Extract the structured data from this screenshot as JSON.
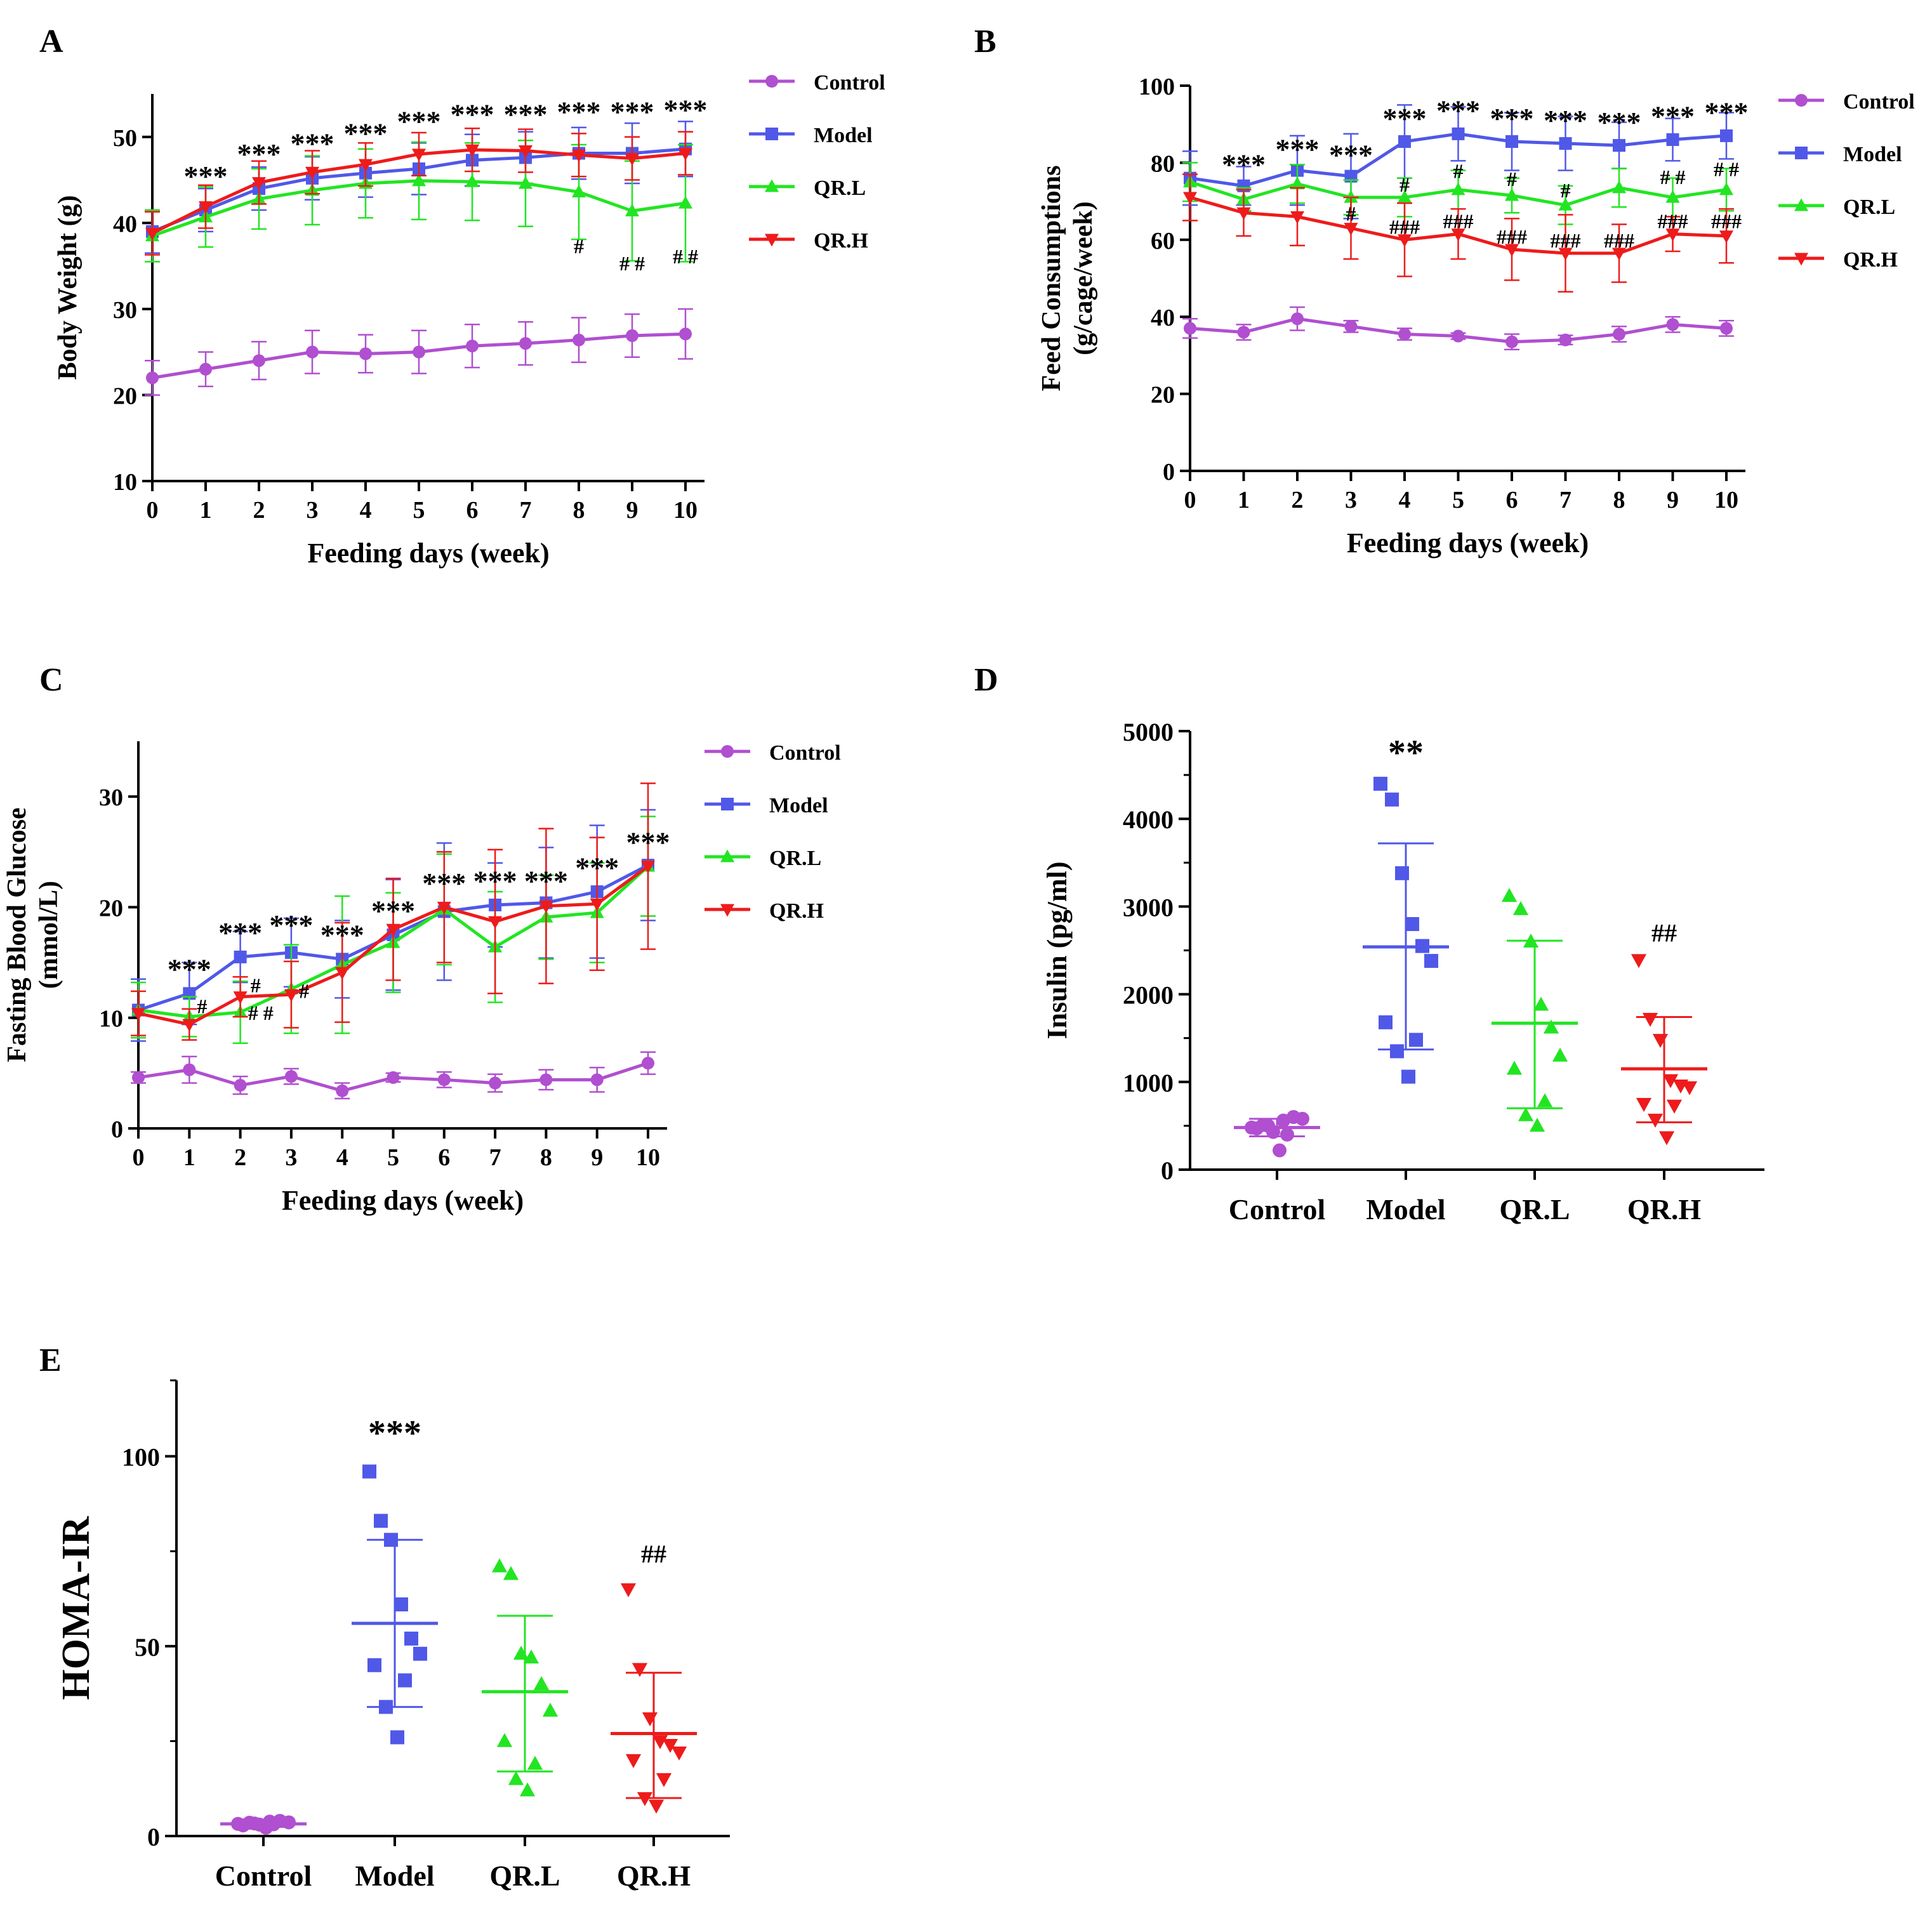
{
  "colors": {
    "control": "#b04fd0",
    "model": "#5058e8",
    "qrl": "#22e522",
    "qrh": "#ee1b1b",
    "axis": "#000000"
  },
  "chart_data": [
    {
      "id": "A",
      "panel_label": "A",
      "type": "line",
      "xlabel": "Feeding days (week)",
      "ylabel": "Body Weight (g)",
      "ylabel2": "",
      "x": [
        0,
        1,
        2,
        3,
        4,
        5,
        6,
        7,
        8,
        9,
        10
      ],
      "ylim": [
        10,
        55
      ],
      "yticks": [
        10,
        20,
        30,
        40,
        50
      ],
      "legend_position": "right",
      "series": [
        {
          "name": "Control",
          "marker": "circle",
          "color_key": "control",
          "values": [
            22,
            23,
            24,
            25,
            24.8,
            25,
            25.7,
            26,
            26.4,
            26.9,
            27.1
          ],
          "errors": [
            2,
            2,
            2.2,
            2.5,
            2.2,
            2.5,
            2.5,
            2.5,
            2.6,
            2.5,
            2.9
          ]
        },
        {
          "name": "Model",
          "marker": "square",
          "color_key": "model",
          "values": [
            39,
            41.5,
            44,
            45.2,
            45.8,
            46.3,
            47.3,
            47.6,
            48.1,
            48.1,
            48.6
          ],
          "errors": [
            2.5,
            2.5,
            2.5,
            2.5,
            2.8,
            3,
            3,
            3,
            3,
            3.5,
            3.2
          ]
        },
        {
          "name": "QR.L",
          "marker": "triangle",
          "color_key": "qrl",
          "values": [
            38.5,
            40.7,
            42.8,
            43.8,
            44.6,
            44.9,
            44.8,
            44.6,
            43.6,
            41.4,
            42.3
          ],
          "errors": [
            3,
            3.5,
            3.5,
            4,
            4,
            4.5,
            4.5,
            5,
            5.5,
            5.8,
            6.8
          ]
        },
        {
          "name": "QR.H",
          "marker": "triangle-down",
          "color_key": "qrh",
          "values": [
            38.8,
            41.9,
            44.7,
            45.9,
            46.8,
            48,
            48.5,
            48.4,
            47.9,
            47.5,
            48.1
          ],
          "errors": [
            2.5,
            2.5,
            2.5,
            2.5,
            2.5,
            2.5,
            2.5,
            2.5,
            2.5,
            2.5,
            2.5
          ]
        }
      ],
      "annotations": [
        {
          "x": 1,
          "y": 44.3,
          "text": "***"
        },
        {
          "x": 2,
          "y": 46.9,
          "text": "***"
        },
        {
          "x": 3,
          "y": 48.1,
          "text": "***"
        },
        {
          "x": 4,
          "y": 49.3,
          "text": "***"
        },
        {
          "x": 5,
          "y": 50.7,
          "text": "***"
        },
        {
          "x": 6,
          "y": 51.5,
          "text": "***"
        },
        {
          "x": 7,
          "y": 51.5,
          "text": "***"
        },
        {
          "x": 8,
          "y": 51.8,
          "text": "***"
        },
        {
          "x": 9,
          "y": 51.8,
          "text": "***"
        },
        {
          "x": 10,
          "y": 52,
          "text": "***"
        },
        {
          "x": 8,
          "y": 36.5,
          "text": "#"
        },
        {
          "x": 9,
          "y": 34.5,
          "text": "# #"
        },
        {
          "x": 10,
          "y": 35.3,
          "text": "# #"
        }
      ]
    },
    {
      "id": "B",
      "panel_label": "B",
      "type": "line",
      "xlabel": "Feeding days (week)",
      "ylabel": "Feed Consumptions",
      "ylabel2": "(g/cage/week)",
      "x": [
        0,
        1,
        2,
        3,
        4,
        5,
        6,
        7,
        8,
        9,
        10
      ],
      "ylim": [
        0,
        100
      ],
      "yticks": [
        0,
        20,
        40,
        60,
        80,
        100
      ],
      "legend_position": "right",
      "series": [
        {
          "name": "Control",
          "marker": "circle",
          "color_key": "control",
          "values": [
            37,
            36,
            39.5,
            37.5,
            35.5,
            35,
            33.5,
            34,
            35.5,
            38,
            37
          ],
          "errors": [
            2.5,
            2,
            3,
            1.5,
            1.5,
            0.8,
            2,
            1.2,
            2,
            2,
            2
          ]
        },
        {
          "name": "Model",
          "marker": "square",
          "color_key": "model",
          "values": [
            76,
            74,
            78,
            76.5,
            85.5,
            87.5,
            85.5,
            85,
            84.5,
            86,
            87
          ],
          "errors": [
            7,
            5,
            9,
            11,
            9.5,
            7,
            7.5,
            7,
            6,
            5.5,
            6
          ]
        },
        {
          "name": "QR.L",
          "marker": "triangle",
          "color_key": "qrl",
          "values": [
            75,
            70.5,
            74.5,
            71,
            71,
            73,
            71.5,
            69,
            73.5,
            71,
            73
          ],
          "errors": [
            5,
            3,
            5,
            4.5,
            5,
            5,
            4.5,
            5,
            5,
            5,
            5.5
          ]
        },
        {
          "name": "QR.H",
          "marker": "triangle-down",
          "color_key": "qrh",
          "values": [
            71,
            67,
            66,
            63,
            60,
            61.5,
            57.5,
            56.5,
            56.5,
            61.5,
            61
          ],
          "errors": [
            6,
            6,
            7.5,
            8,
            9.5,
            6.5,
            8,
            10,
            7.5,
            4.5,
            7
          ]
        }
      ],
      "annotations": [
        {
          "x": 1,
          "y": 77,
          "text": "***"
        },
        {
          "x": 2,
          "y": 81,
          "text": "***"
        },
        {
          "x": 3,
          "y": 79.5,
          "text": "***"
        },
        {
          "x": 4,
          "y": 89,
          "text": "***"
        },
        {
          "x": 5,
          "y": 91,
          "text": "***"
        },
        {
          "x": 6,
          "y": 89,
          "text": "***"
        },
        {
          "x": 7,
          "y": 88.5,
          "text": "***"
        },
        {
          "x": 8,
          "y": 88,
          "text": "***"
        },
        {
          "x": 9,
          "y": 89.5,
          "text": "***"
        },
        {
          "x": 10,
          "y": 90.5,
          "text": "***"
        },
        {
          "x": 3,
          "y": 65,
          "text": "#"
        },
        {
          "x": 4,
          "y": 72.5,
          "text": "#"
        },
        {
          "x": 5,
          "y": 76,
          "text": "#"
        },
        {
          "x": 6,
          "y": 74,
          "text": "#"
        },
        {
          "x": 7,
          "y": 71,
          "text": "#"
        },
        {
          "x": 9,
          "y": 74.5,
          "text": "# #"
        },
        {
          "x": 10,
          "y": 76.5,
          "text": "# #"
        },
        {
          "x": 4,
          "y": 61.5,
          "text": "###"
        },
        {
          "x": 5,
          "y": 63,
          "text": "###"
        },
        {
          "x": 6,
          "y": 59,
          "text": "###"
        },
        {
          "x": 7,
          "y": 58,
          "text": "###"
        },
        {
          "x": 8,
          "y": 58,
          "text": "###"
        },
        {
          "x": 9,
          "y": 63,
          "text": "###"
        },
        {
          "x": 10,
          "y": 63,
          "text": "###"
        }
      ]
    },
    {
      "id": "C",
      "panel_label": "C",
      "type": "line",
      "xlabel": "Feeding days (week)",
      "ylabel": "Fasting Blood Glucose",
      "ylabel2": "(mmol/L)",
      "x": [
        0,
        1,
        2,
        3,
        4,
        5,
        6,
        7,
        8,
        9,
        10
      ],
      "ylim": [
        0,
        35
      ],
      "yticks": [
        0,
        10,
        20,
        30
      ],
      "legend_position": "right",
      "series": [
        {
          "name": "Control",
          "marker": "circle",
          "color_key": "control",
          "values": [
            4.6,
            5.3,
            3.9,
            4.7,
            3.4,
            4.6,
            4.4,
            4.1,
            4.4,
            4.4,
            5.9
          ],
          "errors": [
            0.5,
            1.2,
            0.8,
            0.7,
            0.7,
            0.4,
            0.7,
            0.8,
            0.9,
            1.1,
            1.0
          ]
        },
        {
          "name": "Model",
          "marker": "square",
          "color_key": "model",
          "values": [
            10.7,
            12.2,
            15.5,
            15.9,
            15.3,
            17.5,
            19.6,
            20.2,
            20.4,
            21.4,
            23.8
          ],
          "errors": [
            2.8,
            2.8,
            2.3,
            3.1,
            3.5,
            5,
            6.2,
            3.8,
            5,
            6,
            5
          ]
        },
        {
          "name": "QR.L",
          "marker": "triangle",
          "color_key": "qrl",
          "values": [
            10.7,
            10.1,
            10.5,
            12.6,
            14.8,
            16.8,
            19.8,
            16.4,
            19.1,
            19.5,
            23.7
          ],
          "errors": [
            2.5,
            1.8,
            2.8,
            4,
            6.2,
            4.5,
            5,
            5,
            3.8,
            4.5,
            4.5
          ]
        },
        {
          "name": "QR.H",
          "marker": "triangle-down",
          "color_key": "qrh",
          "values": [
            10.4,
            9.4,
            11.9,
            12.1,
            14.1,
            18,
            20,
            18.7,
            20.1,
            20.3,
            23.7
          ],
          "errors": [
            2,
            1.4,
            1.8,
            3,
            4.5,
            4.6,
            5,
            6.5,
            7,
            6,
            7.5
          ]
        }
      ],
      "annotations": [
        {
          "x": 1,
          "y": 13.5,
          "text": "***"
        },
        {
          "x": 2,
          "y": 16.8,
          "text": "***"
        },
        {
          "x": 3,
          "y": 17.5,
          "text": "***"
        },
        {
          "x": 4,
          "y": 16.6,
          "text": "***"
        },
        {
          "x": 5,
          "y": 18.8,
          "text": "***"
        },
        {
          "x": 6,
          "y": 21.3,
          "text": "***"
        },
        {
          "x": 7,
          "y": 21.5,
          "text": "***"
        },
        {
          "x": 8,
          "y": 21.5,
          "text": "***"
        },
        {
          "x": 9,
          "y": 22.7,
          "text": "***"
        },
        {
          "x": 10,
          "y": 25,
          "text": "***"
        },
        {
          "x": 1.25,
          "y": 10.4,
          "text": "#"
        },
        {
          "x": 2.3,
          "y": 12.3,
          "text": "#"
        },
        {
          "x": 2.4,
          "y": 9.8,
          "text": "# #"
        },
        {
          "x": 3.25,
          "y": 11.8,
          "text": "#"
        }
      ]
    },
    {
      "id": "D",
      "panel_label": "D",
      "type": "scatter",
      "xlabel": "",
      "ylabel": "Insulin (pg/ml)",
      "categories": [
        "Control",
        "Model",
        "QR.L",
        "QR.H"
      ],
      "ylim": [
        0,
        5000
      ],
      "yticks": [
        0,
        1000,
        2000,
        3000,
        4000,
        5000
      ],
      "groups": [
        {
          "name": "Control",
          "marker": "circle",
          "color_key": "control",
          "points": [
            480,
            510,
            430,
            560,
            600,
            580,
            470,
            400,
            500,
            220
          ],
          "mean": 480,
          "sd_low": 380,
          "sd_high": 580
        },
        {
          "name": "Model",
          "marker": "square",
          "color_key": "model",
          "points": [
            4400,
            4220,
            3380,
            2800,
            2550,
            2380,
            1680,
            1480,
            1350,
            1060
          ],
          "mean": 2540,
          "sd_low": 1370,
          "sd_high": 3720
        },
        {
          "name": "QR.L",
          "marker": "triangle",
          "color_key": "qrl",
          "points": [
            3120,
            2970,
            2600,
            1880,
            1620,
            1300,
            1150,
            780,
            620,
            500
          ],
          "mean": 1670,
          "sd_low": 700,
          "sd_high": 2610
        },
        {
          "name": "QR.H",
          "marker": "triangle-down",
          "color_key": "qrh",
          "points": [
            2390,
            1720,
            1480,
            1020,
            960,
            940,
            750,
            730,
            570,
            370
          ],
          "mean": 1150,
          "sd_low": 540,
          "sd_high": 1740
        }
      ],
      "annotations": [
        {
          "category": "Model",
          "y": 4620,
          "text": "**"
        },
        {
          "category": "QR.H",
          "y": 2600,
          "text": "##"
        }
      ]
    },
    {
      "id": "E",
      "panel_label": "E",
      "type": "scatter",
      "xlabel": "",
      "ylabel": "HOMA-IR",
      "categories": [
        "Control",
        "Model",
        "QR.L",
        "QR.H"
      ],
      "ylim": [
        0,
        120
      ],
      "yticks": [
        0,
        50,
        100
      ],
      "groups": [
        {
          "name": "Control",
          "marker": "circle",
          "color_key": "control",
          "points": [
            3.2,
            3.5,
            3.0,
            3.8,
            4.0,
            3.6,
            2.8,
            3.1,
            3.3,
            2.2
          ],
          "mean": 3.2,
          "sd_low": 2.4,
          "sd_high": 4.0
        },
        {
          "name": "Model",
          "marker": "square",
          "color_key": "model",
          "points": [
            96,
            83,
            78,
            61,
            52,
            48,
            45,
            41,
            34,
            26
          ],
          "mean": 56,
          "sd_low": 34,
          "sd_high": 78
        },
        {
          "name": "QR.L",
          "marker": "triangle",
          "color_key": "qrl",
          "points": [
            71,
            69,
            48,
            47,
            40,
            33,
            25,
            19,
            15,
            12
          ],
          "mean": 38,
          "sd_low": 17,
          "sd_high": 58
        },
        {
          "name": "QR.H",
          "marker": "triangle-down",
          "color_key": "qrh",
          "points": [
            65,
            44,
            31,
            25,
            24,
            22,
            20,
            15,
            10,
            8
          ],
          "mean": 27,
          "sd_low": 10,
          "sd_high": 43
        }
      ],
      "annotations": [
        {
          "category": "Model",
          "y": 103,
          "text": "***"
        },
        {
          "category": "QR.H",
          "y": 72,
          "text": "##"
        }
      ]
    }
  ]
}
